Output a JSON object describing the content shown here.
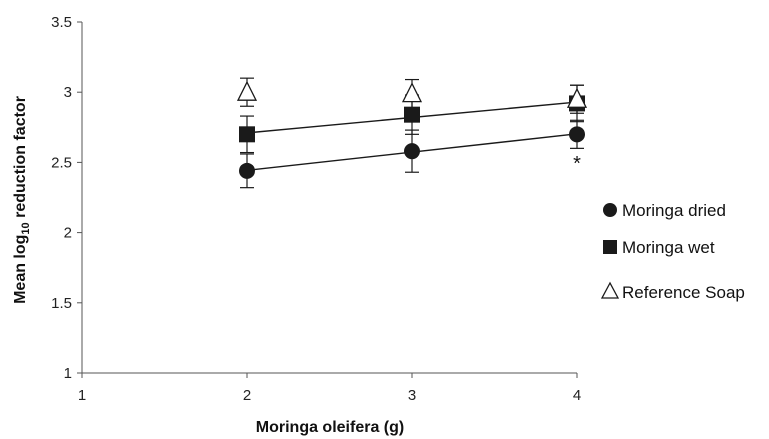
{
  "chart_data": {
    "type": "line",
    "title": "",
    "xlabel": "Moringa oleifera (g)",
    "ylabel_main": "Mean log",
    "ylabel_sub": "10",
    "ylabel_rest": " reduction factor",
    "xlim": [
      1,
      4
    ],
    "ylim": [
      1,
      3.5
    ],
    "xticks": [
      "1",
      "2",
      "3",
      "4"
    ],
    "yticks": [
      "1",
      "1.5",
      "2",
      "2.5",
      "3",
      "3.5"
    ],
    "grid": false,
    "legend_position": "right",
    "series": [
      {
        "name": "Moringa dried",
        "marker": "circle",
        "filled": true,
        "trendline": true,
        "x": [
          2,
          3,
          4
        ],
        "y": [
          2.44,
          2.58,
          2.7
        ],
        "error": [
          0.12,
          0.15,
          0.1
        ]
      },
      {
        "name": "Moringa wet",
        "marker": "square",
        "filled": true,
        "trendline": true,
        "x": [
          2,
          3,
          4
        ],
        "y": [
          2.7,
          2.84,
          2.92
        ],
        "error": [
          0.13,
          0.14,
          0.13
        ]
      },
      {
        "name": "Reference Soap",
        "marker": "triangle",
        "filled": false,
        "trendline": false,
        "x": [
          2,
          3,
          4
        ],
        "y": [
          3.0,
          2.99,
          2.95
        ],
        "error": [
          0.1,
          0.1,
          0.1
        ]
      }
    ],
    "annotations": [
      {
        "text": "*",
        "x": 4,
        "y": 2.53
      }
    ]
  },
  "legend": {
    "items": [
      {
        "label": "Moringa dried",
        "icon": "filled-circle-icon"
      },
      {
        "label": "Moringa wet",
        "icon": "filled-square-icon"
      },
      {
        "label": "Reference Soap",
        "icon": "open-triangle-icon"
      }
    ]
  },
  "colors": {
    "mark": "#1a1a1a",
    "axis": "#555555"
  }
}
